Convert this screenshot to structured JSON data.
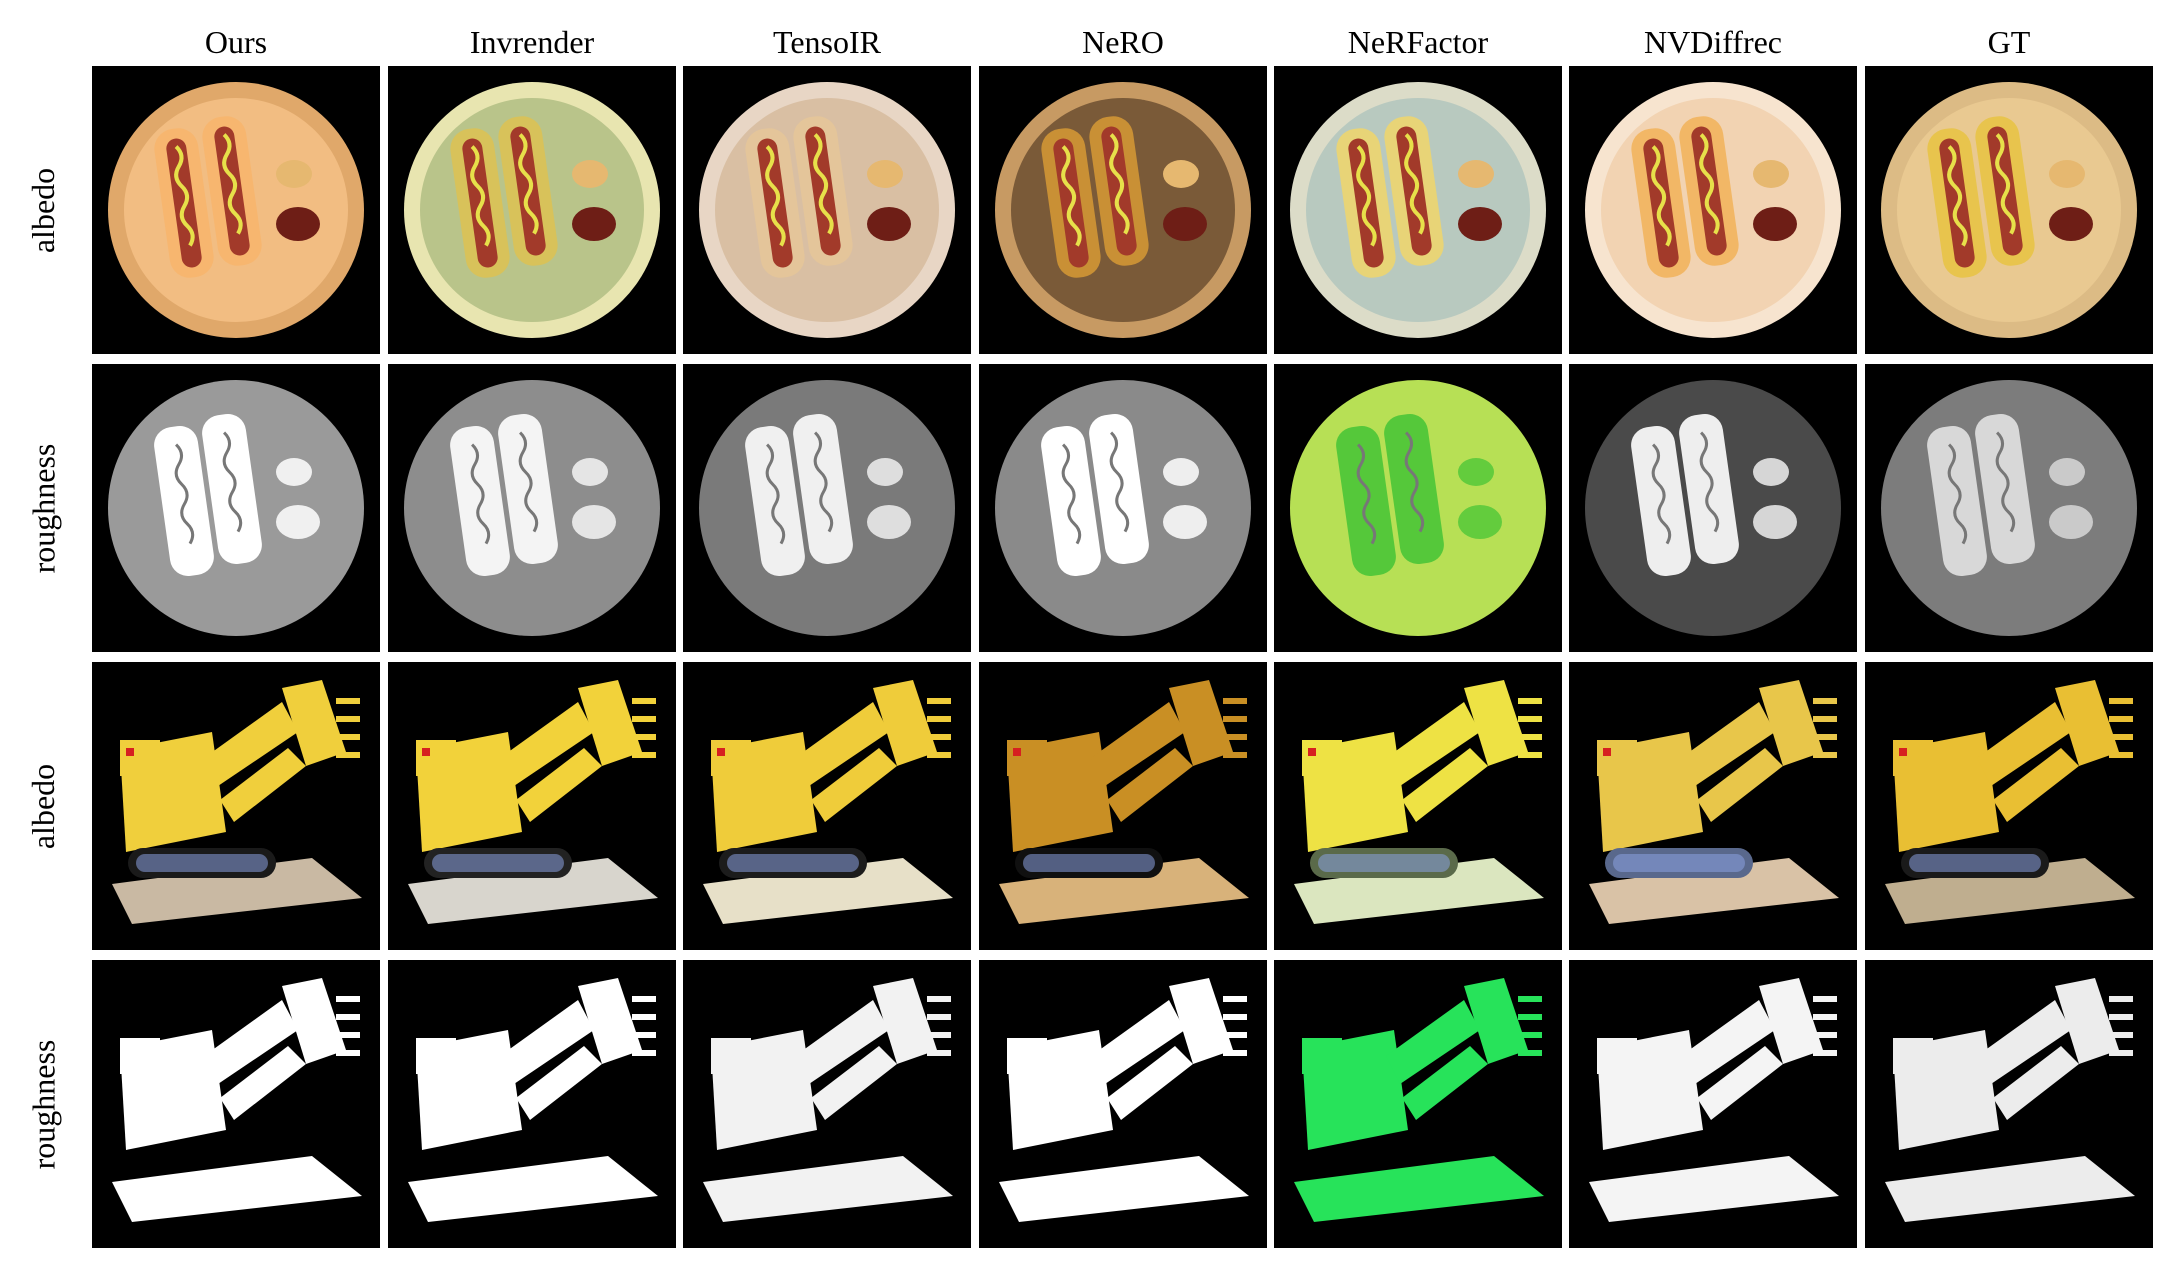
{
  "figure": {
    "columns": [
      "Ours",
      "Invrender",
      "TensoIR",
      "NeRO",
      "NeRFactor",
      "NVDiffrec",
      "GT"
    ],
    "rows": [
      {
        "label": "albedo",
        "scene": "hotdog",
        "map": "albedo"
      },
      {
        "label": "roughness",
        "scene": "hotdog",
        "map": "roughness"
      },
      {
        "label": "albedo",
        "scene": "lego",
        "map": "albedo"
      },
      {
        "label": "roughness",
        "scene": "lego",
        "map": "roughness"
      }
    ],
    "palettes": {
      "Ours": {
        "plate": "#f2bd82",
        "rim": "#e0a86a",
        "tint": "#f7b66f",
        "rough": "#9a9a9a",
        "roughFg": "#ffffff"
      },
      "Invrender": {
        "plate": "#b9c48a",
        "rim": "#e8e5b0",
        "tint": "#d8c25a",
        "rough": "#8d8d8d",
        "roughFg": "#f4f4f4"
      },
      "TensoIR": {
        "plate": "#d9bfa3",
        "rim": "#e8d6c5",
        "tint": "#e4c59a",
        "rough": "#7a7a7a",
        "roughFg": "#f0f0f0"
      },
      "NeRO": {
        "plate": "#7a5a38",
        "rim": "#c79a63",
        "tint": "#c99035",
        "rough": "#8a8a8a",
        "roughFg": "#ffffff"
      },
      "NeRFactor": {
        "plate": "#b8c9bf",
        "rim": "#dcdcc8",
        "tint": "#e8d477",
        "rough": "#b7e055",
        "roughFg": "#55c83a"
      },
      "NVDiffrec": {
        "plate": "#f2d3b2",
        "rim": "#f7e4cf",
        "tint": "#f2b766",
        "rough": "#4a4a4a",
        "roughFg": "#eeeeee"
      },
      "GT": {
        "plate": "#e9c991",
        "rim": "#dcbb85",
        "tint": "#e8c44d",
        "rough": "#7c7c7c",
        "roughFg": "#d8d8d8"
      }
    },
    "lego_palettes": {
      "Ours": {
        "body": "#f0cf3c",
        "base": "#c9b9a3",
        "track": "#1a1a1a",
        "rough": "#ffffff"
      },
      "Invrender": {
        "body": "#f2d23a",
        "base": "#d8d5cd",
        "track": "#222222",
        "rough": "#ffffff"
      },
      "TensoIR": {
        "body": "#efcc3a",
        "base": "#e7e0c8",
        "track": "#1c1c1c",
        "rough": "#f2f2f2"
      },
      "NeRO": {
        "body": "#c98f24",
        "base": "#d8b27a",
        "track": "#101010",
        "rough": "#ffffff"
      },
      "NeRFactor": {
        "body": "#eee244",
        "base": "#dbe6bf",
        "track": "#5a6a4a",
        "rough": "#27e35a"
      },
      "NVDiffrec": {
        "body": "#e8c64a",
        "base": "#d9c2a6",
        "track": "#59688c",
        "rough": "#f4f4f4"
      },
      "GT": {
        "body": "#e9bf33",
        "base": "#bfae8f",
        "track": "#1a1a1a",
        "rough": "#ececec"
      }
    }
  }
}
